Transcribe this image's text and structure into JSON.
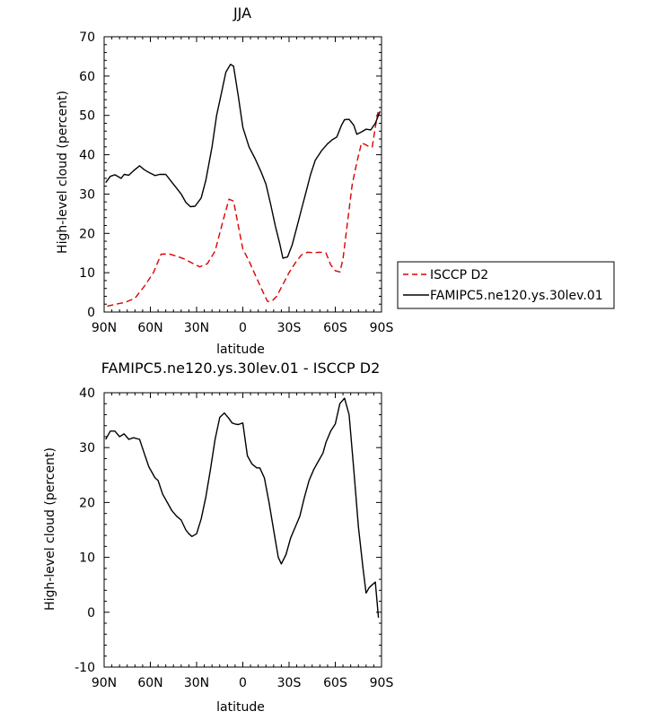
{
  "colors": {
    "model": "#000000",
    "obs": "#dd0000",
    "axis": "#000000"
  },
  "chart_data": [
    {
      "type": "line",
      "title": "JJA",
      "xlabel": "latitude",
      "ylabel": "High-level cloud (percent)",
      "xlim": [
        90,
        -90
      ],
      "ylim": [
        0,
        70
      ],
      "x_ticks": [
        90,
        60,
        30,
        0,
        -30,
        -60,
        -90
      ],
      "x_tick_labels": [
        "90N",
        "60N",
        "30N",
        "0",
        "30S",
        "60S",
        "90S"
      ],
      "y_ticks": [
        0,
        10,
        20,
        30,
        40,
        50,
        60,
        70
      ],
      "y_tick_labels": [
        "0",
        "10",
        "20",
        "30",
        "40",
        "50",
        "60",
        "70"
      ],
      "legend": {
        "position": "right",
        "entries": [
          "ISCCP D2",
          "FAMIPC5.ne120.ys.30lev.01"
        ]
      },
      "series": [
        {
          "name": "ISCCP D2",
          "style": "dashed",
          "color": "#dd0000",
          "x": [
            88,
            82,
            76,
            70,
            64,
            58,
            53,
            48,
            43,
            38,
            33,
            28,
            23,
            18,
            13,
            9,
            6,
            3,
            0,
            -4,
            -8,
            -12,
            -16,
            -19,
            -22,
            -26,
            -30,
            -34,
            -38,
            -42,
            -46,
            -50,
            -54,
            -57,
            -60,
            -63,
            -65,
            -68,
            -71,
            -74,
            -77,
            -80,
            -82,
            -84,
            -86,
            -88
          ],
          "values": [
            1.5,
            2,
            2.5,
            3.5,
            6.5,
            10,
            14.7,
            14.8,
            14.2,
            13.5,
            12.5,
            11.5,
            12.3,
            15.5,
            23,
            28.7,
            28.2,
            22,
            16,
            13,
            9.5,
            6,
            2.7,
            2.8,
            4,
            7,
            10,
            12.5,
            14.5,
            15.2,
            15.1,
            15.2,
            15,
            12,
            10.5,
            10.2,
            13.5,
            23,
            32.5,
            38,
            43,
            42.5,
            42,
            42,
            47,
            51.5
          ]
        },
        {
          "name": "FAMIPC5.ne120.ys.30lev.01",
          "style": "solid",
          "color": "#000000",
          "x": [
            89,
            86,
            83,
            79,
            77,
            74,
            71,
            67,
            64,
            61,
            57,
            54,
            50,
            46,
            43,
            40,
            37,
            34,
            31,
            27,
            24,
            20,
            17,
            14,
            11,
            8,
            6,
            3,
            0,
            -4,
            -8,
            -12,
            -15,
            -18,
            -21,
            -24,
            -26,
            -29,
            -32,
            -35,
            -38,
            -41,
            -44,
            -47,
            -51,
            -55,
            -58,
            -61,
            -64,
            -66,
            -69,
            -72,
            -74,
            -77,
            -80,
            -83,
            -86,
            -89
          ],
          "values": [
            32.9,
            34.5,
            34.9,
            34,
            35,
            34.8,
            35.9,
            37.2,
            36.2,
            35.5,
            34.7,
            35,
            35,
            33,
            31.5,
            30,
            27.9,
            26.8,
            26.9,
            29,
            33.5,
            42,
            50,
            55.5,
            61,
            63,
            62.5,
            55,
            47,
            42,
            39,
            35.5,
            32.5,
            27.5,
            22,
            17.3,
            13.7,
            14,
            17,
            21.5,
            26,
            30.5,
            35,
            38.6,
            41,
            42.8,
            43.8,
            44.5,
            47.5,
            48.9,
            49,
            47.5,
            45.2,
            45.8,
            46.5,
            46.3,
            48,
            51
          ]
        }
      ]
    },
    {
      "type": "line",
      "title": "FAMIPC5.ne120.ys.30lev.01 - ISCCP D2",
      "xlabel": "latitude",
      "ylabel": "High-level cloud (percent)",
      "xlim": [
        90,
        -90
      ],
      "ylim": [
        -10,
        40
      ],
      "x_ticks": [
        90,
        60,
        30,
        0,
        -30,
        -60,
        -90
      ],
      "x_tick_labels": [
        "90N",
        "60N",
        "30N",
        "0",
        "30S",
        "60S",
        "90S"
      ],
      "y_ticks": [
        -10,
        0,
        10,
        20,
        30,
        40
      ],
      "y_tick_labels": [
        "-10",
        "0",
        "10",
        "20",
        "30",
        "40"
      ],
      "series": [
        {
          "name": "FAMIPC5.ne120.ys.30lev.01 - ISCCP D2",
          "style": "solid",
          "color": "#000000",
          "x": [
            89,
            86,
            83,
            80,
            77,
            74,
            71,
            67,
            64,
            61,
            57,
            55,
            52,
            49,
            46,
            43,
            40,
            37,
            35,
            33,
            30,
            27,
            24,
            21,
            18,
            15,
            12,
            9,
            7,
            5,
            3,
            0,
            -3,
            -6,
            -9,
            -11,
            -14,
            -17,
            -20,
            -23,
            -25,
            -28,
            -31,
            -34,
            -37,
            -40,
            -43,
            -46,
            -49,
            -52,
            -54,
            -57,
            -60,
            -63,
            -66,
            -69,
            -72,
            -75,
            -78,
            -80,
            -82,
            -84,
            -86,
            -88
          ],
          "values": [
            31.5,
            33,
            33,
            32,
            32.5,
            31.5,
            31.8,
            31.5,
            29,
            26.5,
            24.5,
            24,
            21.5,
            20,
            18.5,
            17.5,
            16.8,
            15,
            14.3,
            13.8,
            14.3,
            17,
            21,
            26,
            31.5,
            35.5,
            36.3,
            35.3,
            34.5,
            34.3,
            34.2,
            34.5,
            28.5,
            27,
            26.3,
            26.3,
            24.5,
            20,
            15,
            10,
            8.8,
            10.5,
            13.5,
            15.5,
            17.5,
            21,
            24,
            26,
            27.5,
            29,
            31,
            33,
            34.3,
            38,
            39,
            36,
            26,
            15.5,
            8,
            3.5,
            4.5,
            5,
            5.5,
            -1
          ]
        }
      ]
    }
  ]
}
